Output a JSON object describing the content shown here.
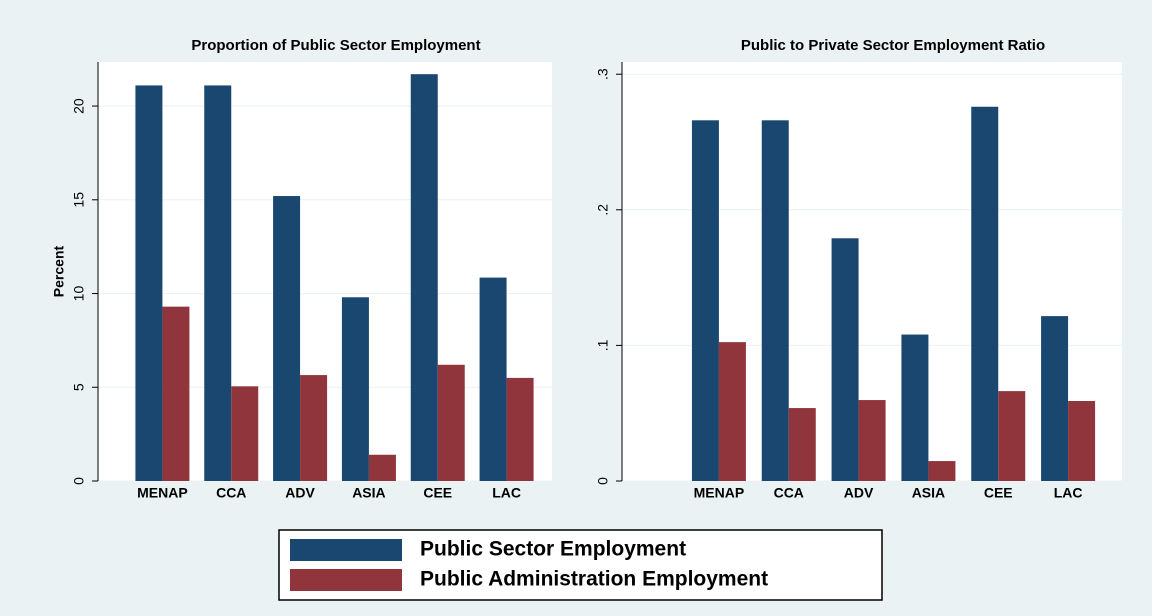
{
  "chart_data": [
    {
      "type": "bar",
      "title": "Proportion of Public Sector Employment",
      "y_label": "Percent",
      "categories": [
        "MENAP",
        "CCA",
        "ADV",
        "ASIA",
        "CEE",
        "LAC"
      ],
      "series": [
        {
          "name": "Public Sector Employment",
          "color": "#1a476f",
          "values": [
            21.1,
            21.1,
            15.2,
            9.8,
            21.7,
            10.85
          ]
        },
        {
          "name": "Public Administration Employment",
          "color": "#90353b",
          "values": [
            9.3,
            5.05,
            5.65,
            1.4,
            6.2,
            5.5
          ]
        }
      ],
      "ylim": [
        0,
        22.35
      ],
      "yticks": [
        0,
        5,
        10,
        15,
        20
      ],
      "grid": true
    },
    {
      "type": "bar",
      "title": "Public to Private Sector Employment Ratio",
      "categories": [
        "MENAP",
        "CCA",
        "ADV",
        "ASIA",
        "CEE",
        "LAC"
      ],
      "series": [
        {
          "name": "Public Sector Employment",
          "color": "#1a476f",
          "values": [
            0.266,
            0.266,
            0.179,
            0.108,
            0.276,
            0.1216
          ]
        },
        {
          "name": "Public Administration Employment",
          "color": "#90353b",
          "values": [
            0.1024,
            0.0538,
            0.0597,
            0.0147,
            0.0663,
            0.059
          ]
        }
      ],
      "ylim": [
        0,
        0.309
      ],
      "yticks": [
        0,
        {
          "value": 0.1,
          "label": ".1"
        },
        {
          "value": 0.2,
          "label": ".2"
        },
        {
          "value": 0.3,
          "label": ".3"
        }
      ],
      "grid": true
    }
  ]
}
